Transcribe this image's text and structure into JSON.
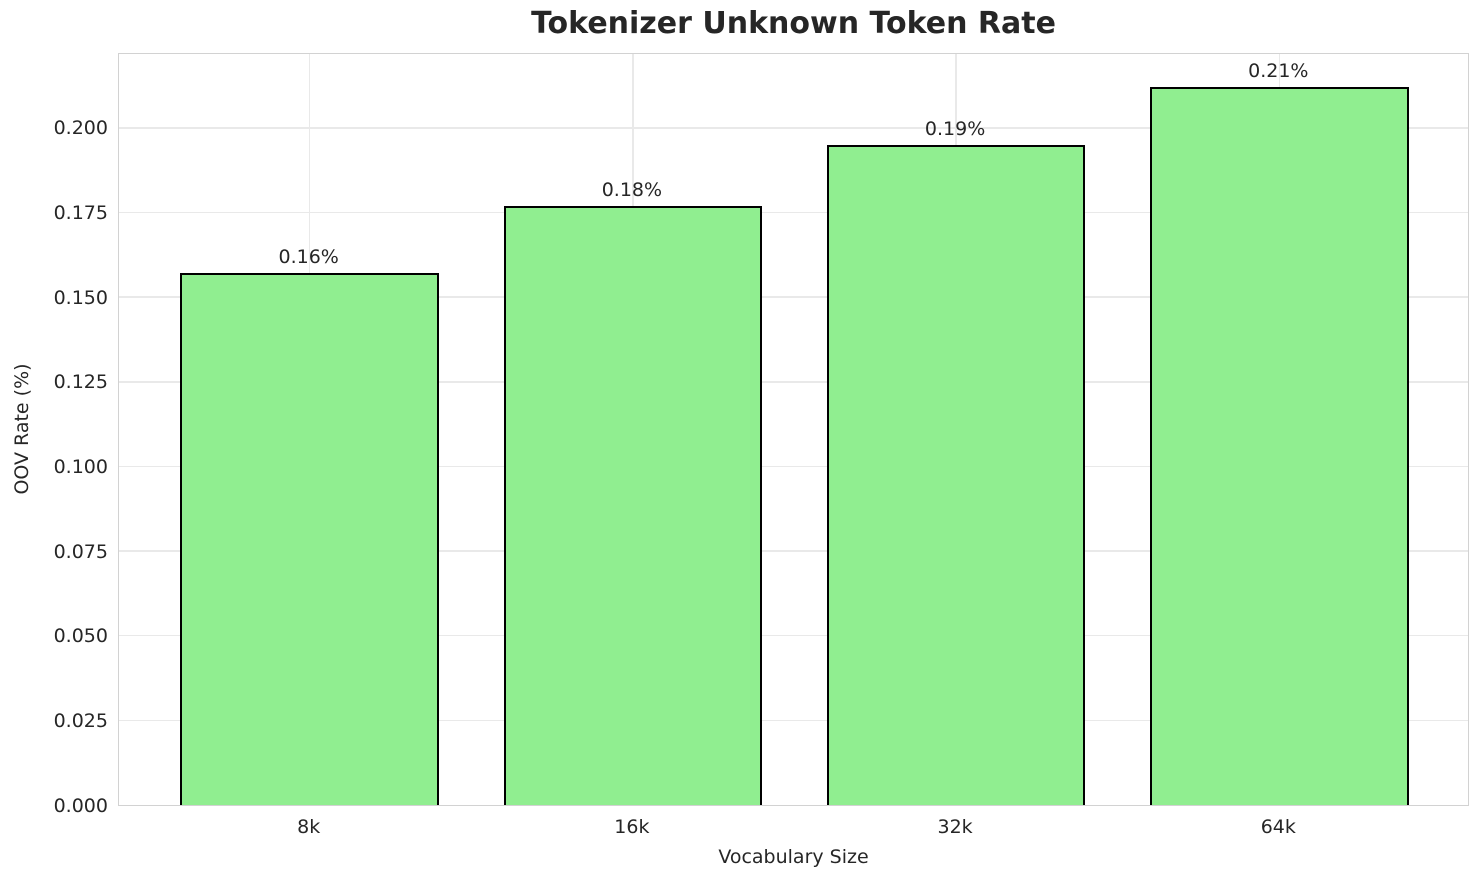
{
  "chart_data": {
    "type": "bar",
    "title": "Tokenizer Unknown Token Rate",
    "xlabel": "Vocabulary Size",
    "ylabel": "OOV Rate (%)",
    "categories": [
      "8k",
      "16k",
      "32k",
      "64k"
    ],
    "values": [
      0.157,
      0.177,
      0.195,
      0.212
    ],
    "bar_labels": [
      "0.16%",
      "0.18%",
      "0.19%",
      "0.21%"
    ],
    "yticks": [
      0.0,
      0.025,
      0.05,
      0.075,
      0.1,
      0.125,
      0.15,
      0.175,
      0.2
    ],
    "ytick_labels": [
      "0.000",
      "0.025",
      "0.050",
      "0.075",
      "0.100",
      "0.125",
      "0.150",
      "0.175",
      "0.200"
    ],
    "ylim": [
      0,
      0.2224
    ],
    "xlim": [
      -0.59,
      3.59
    ],
    "bar_width": 0.8,
    "grid": true,
    "legend": null,
    "colors": {
      "bar_fill": "#90EE90",
      "bar_edge": "#000000",
      "grid_color": "#e9e9e9",
      "spine_color": "#d2d2d2",
      "text_color": "#262626",
      "background": "#ffffff"
    }
  }
}
